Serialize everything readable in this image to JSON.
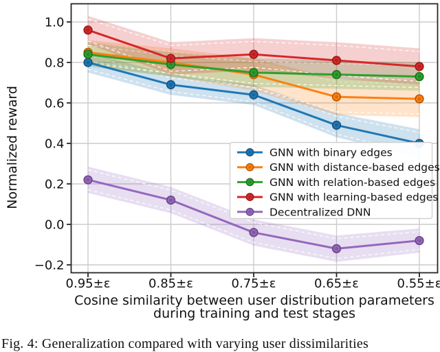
{
  "figure": {
    "caption": "Fig. 4: Generalization compared with varying user dissimilarities"
  },
  "chart_data": {
    "type": "line",
    "title": "",
    "ylabel": "Normalized reward",
    "xlabel_lines": [
      "Cosine similarity between user distribution parameters",
      "during training and test stages"
    ],
    "categories": [
      "0.95±ε",
      "0.85±ε",
      "0.75±ε",
      "0.65±ε",
      "0.55±ε"
    ],
    "yticks": {
      "labels": [
        "1.0",
        "0.8",
        "0.6",
        "0.4",
        "0.2",
        "0.0",
        "−0.2"
      ],
      "values": [
        1.0,
        0.8,
        0.6,
        0.4,
        0.2,
        0.0,
        -0.2
      ]
    },
    "ylim": [
      -0.24,
      1.09
    ],
    "grid": true,
    "grid_color": "#cccccc",
    "spine_color": "#262626",
    "legend_position": "lower-right-inside",
    "series": [
      {
        "name": "GNN with binary edges",
        "color": "#1f77b4",
        "values": [
          0.8,
          0.69,
          0.64,
          0.49,
          0.4
        ],
        "band": [
          0.05,
          0.05,
          0.05,
          0.06,
          0.07
        ]
      },
      {
        "name": "GNN with distance-based edges",
        "color": "#ff7f0e",
        "values": [
          0.85,
          0.8,
          0.74,
          0.63,
          0.62
        ],
        "band": [
          0.06,
          0.07,
          0.08,
          0.09,
          0.09
        ]
      },
      {
        "name": "GNN with relation-based edges",
        "color": "#2ca02c",
        "values": [
          0.84,
          0.79,
          0.75,
          0.74,
          0.73
        ],
        "band": [
          0.06,
          0.06,
          0.07,
          0.07,
          0.07
        ]
      },
      {
        "name": "GNN with learning-based edges",
        "color": "#d62728",
        "values": [
          0.96,
          0.82,
          0.84,
          0.81,
          0.78
        ],
        "band": [
          0.07,
          0.08,
          0.08,
          0.09,
          0.09
        ]
      },
      {
        "name": "Decentralized DNN",
        "color": "#9467bd",
        "values": [
          0.22,
          0.12,
          -0.04,
          -0.12,
          -0.08
        ],
        "band": [
          0.065,
          0.065,
          0.065,
          0.065,
          0.06
        ]
      }
    ]
  }
}
